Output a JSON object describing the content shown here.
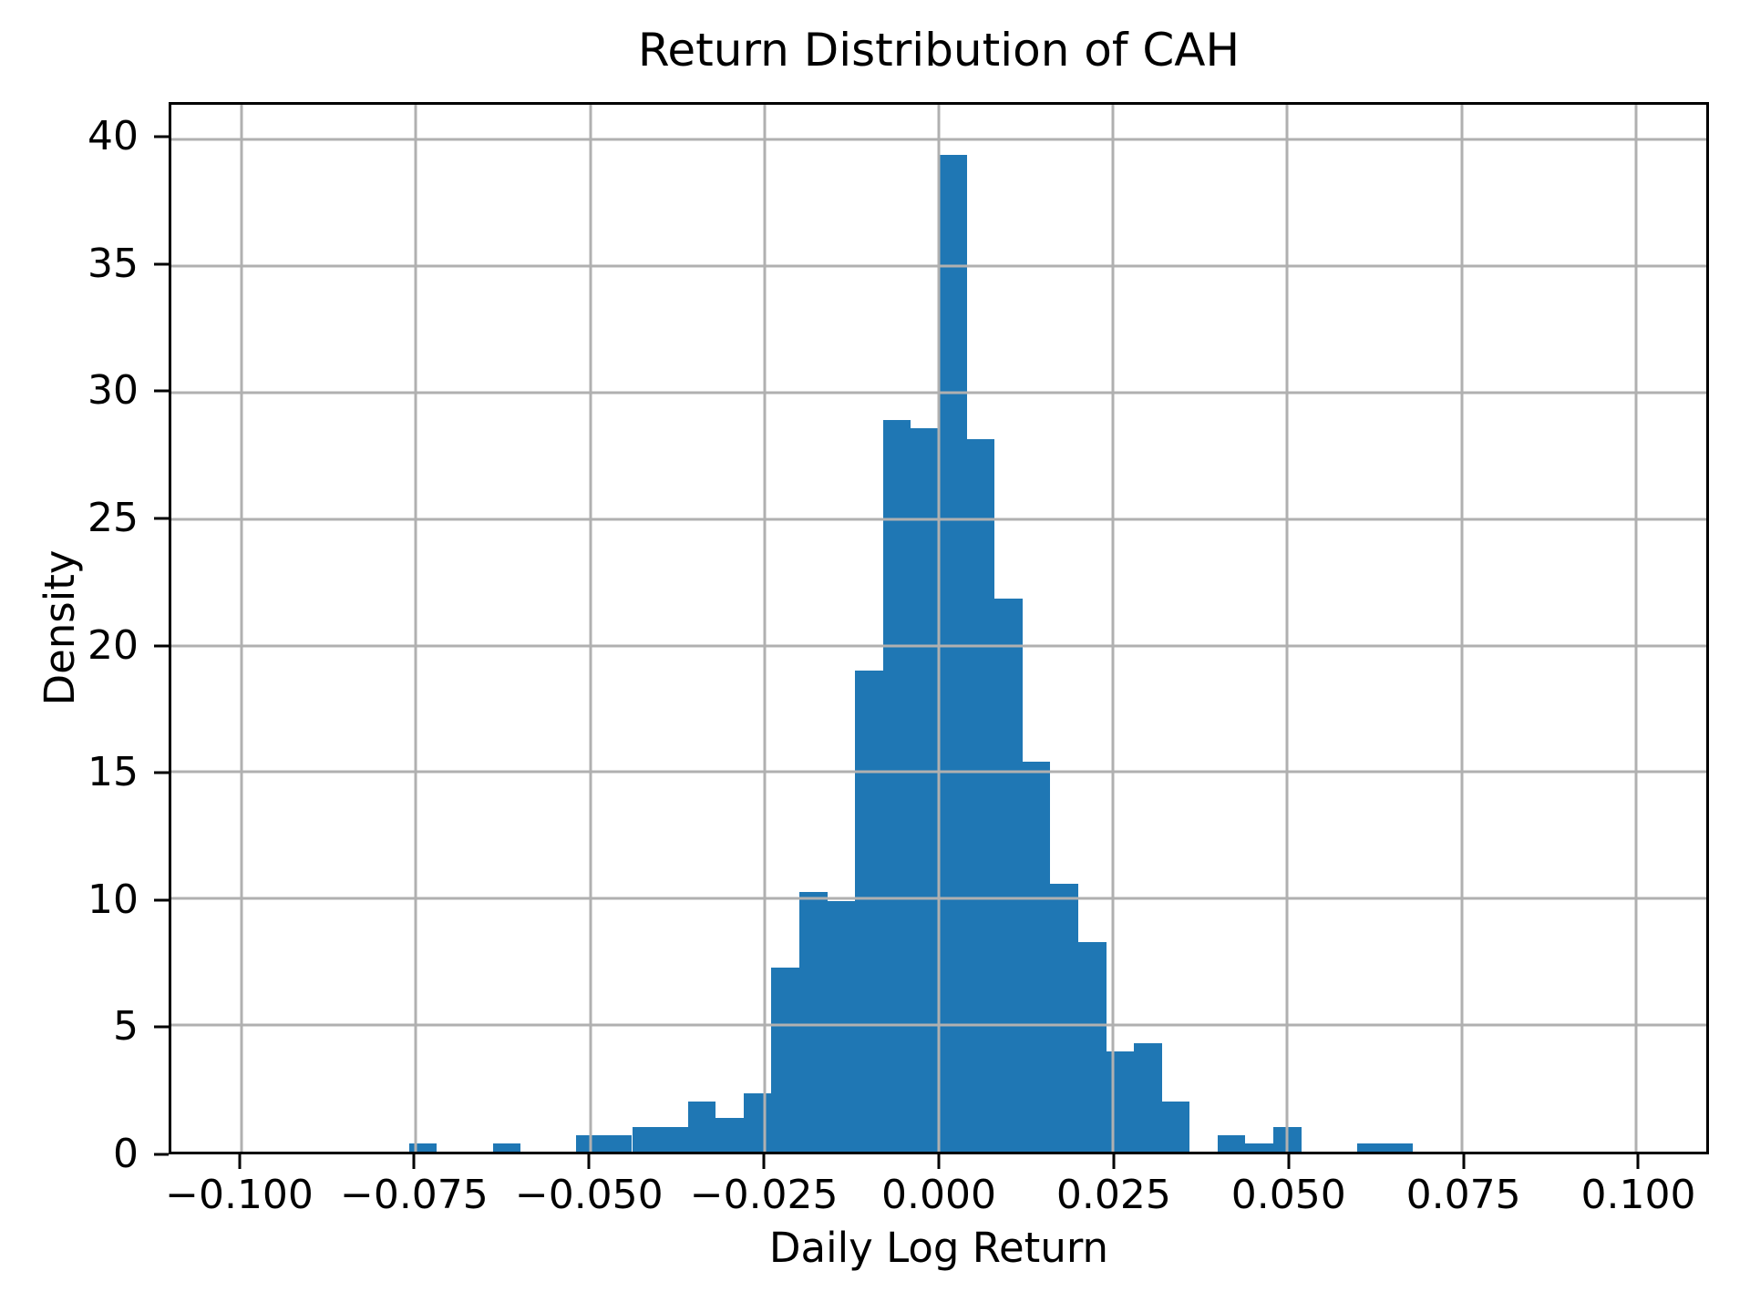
{
  "chart_data": {
    "type": "bar",
    "subtype": "histogram",
    "title": "Return Distribution of CAH",
    "xlabel": "Daily Log Return",
    "ylabel": "Density",
    "bar_color": "#1f77b4",
    "grid_color": "#b0b0b0",
    "grid_on": true,
    "grid_above_bars": true,
    "legend_position": "none",
    "xlim": [
      -0.1101,
      0.1101
    ],
    "ylim": [
      0,
      41.37
    ],
    "x_ticks": [
      -0.1,
      -0.075,
      -0.05,
      -0.025,
      0.0,
      0.025,
      0.05,
      0.075,
      0.1
    ],
    "x_tick_labels": [
      "−0.100",
      "−0.075",
      "−0.050",
      "−0.025",
      "0.000",
      "0.025",
      "0.050",
      "0.075",
      "0.100"
    ],
    "y_ticks": [
      0,
      5,
      10,
      15,
      20,
      25,
      30,
      35,
      40
    ],
    "y_tick_labels": [
      "0",
      "5",
      "10",
      "15",
      "20",
      "25",
      "30",
      "35",
      "40"
    ],
    "bin_width": 0.004,
    "bin_left_edges": [
      -0.076,
      -0.072,
      -0.068,
      -0.064,
      -0.06,
      -0.056,
      -0.052,
      -0.048,
      -0.044,
      -0.04,
      -0.036,
      -0.032,
      -0.028,
      -0.024,
      -0.02,
      -0.016,
      -0.012,
      -0.008,
      -0.004,
      0.0,
      0.004,
      0.008,
      0.012,
      0.016,
      0.02,
      0.024,
      0.028,
      0.032,
      0.036,
      0.04,
      0.044,
      0.048,
      0.052,
      0.056,
      0.06,
      0.064
    ],
    "densities": [
      0.33,
      0,
      0,
      0.33,
      0,
      0,
      0.66,
      0.66,
      0.99,
      0.99,
      1.98,
      1.32,
      2.31,
      7.28,
      10.25,
      9.92,
      19.0,
      28.9,
      28.6,
      39.4,
      28.15,
      21.85,
      15.4,
      10.58,
      8.27,
      3.97,
      4.3,
      1.98,
      0,
      0.66,
      0.33,
      0.99,
      0,
      0,
      0.33,
      0.33
    ]
  }
}
